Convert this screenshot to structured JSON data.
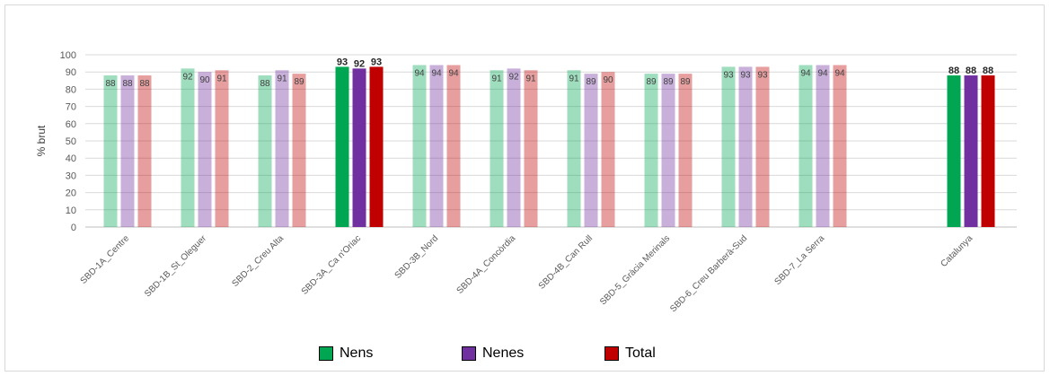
{
  "chart_data": {
    "type": "bar",
    "ylabel": "% brut",
    "ylim": [
      0,
      100
    ],
    "yticks": [
      "0",
      "10",
      "20",
      "30",
      "40",
      "50",
      "60",
      "70",
      "80",
      "90",
      "100"
    ],
    "grid": true,
    "legend_position": "bottom",
    "categories": [
      "SBD-1A_Centre",
      "SBD-1B_St_Oleguer",
      "SBD-2_Creu Alta",
      "SBD-3A_Ca n'Oriac",
      "SBD-3B_Nord",
      "SBD-4A_Concòrdia",
      "SBD-4B_Can Rull",
      "SBD-5_Gràcia Merinals",
      "SBD-6_Creu Barberà-Sud",
      "SBD-7_La Serra",
      "Catalunya"
    ],
    "highlighted_categories": [
      "SBD-3A_Ca n'Oriac",
      "Catalunya"
    ],
    "series": [
      {
        "name": "Nens",
        "color": "#00a651",
        "values": [
          88,
          92,
          88,
          93,
          94,
          91,
          91,
          89,
          93,
          94,
          88
        ]
      },
      {
        "name": "Nenes",
        "color": "#7030a0",
        "values": [
          88,
          90,
          91,
          92,
          94,
          92,
          89,
          89,
          93,
          94,
          88
        ]
      },
      {
        "name": "Total",
        "color": "#c00000",
        "values": [
          88,
          91,
          89,
          93,
          94,
          91,
          90,
          89,
          93,
          94,
          88
        ]
      }
    ]
  }
}
